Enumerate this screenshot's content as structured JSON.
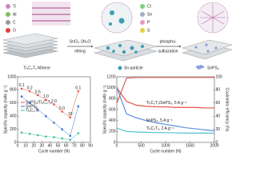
{
  "schematic": {
    "legend_left": [
      "Ti",
      "Al",
      "C",
      "O"
    ],
    "legend_right": [
      "Cl",
      "Sn",
      "P",
      "S"
    ],
    "step1_top": "SnCl₂·2H₂O",
    "step1_bottom": "ething",
    "step2_top": "phospho-",
    "step2_bottom": "sulfuization",
    "label_mxene": "Ti₃C₂Tₓ MXene",
    "label_sn": "Sn particle",
    "label_snps3": "SnPS₃"
  },
  "chart_data": [
    {
      "type": "line",
      "x_label": "Cycle number (N)",
      "y_label": "Specific capacity (mAh g⁻¹)",
      "x": [
        5,
        15,
        25,
        35,
        45,
        55,
        65,
        75
      ],
      "rate_labels": [
        "0.1",
        "0.2",
        "0.5",
        "1.0",
        "2.0",
        "5.0",
        "10",
        "0.1"
      ],
      "series": [
        {
          "name": "SnPS₃/Ti₃C₂Tₓ",
          "color": "#e8524a",
          "values": [
            820,
            780,
            720,
            650,
            580,
            470,
            380,
            780
          ]
        },
        {
          "name": "SnPS₃",
          "color": "#3b6fd8",
          "values": [
            700,
            600,
            500,
            400,
            300,
            200,
            100,
            550
          ]
        },
        {
          "name": "Ti₃C₂Tₓ",
          "color": "#3fbfa0",
          "values": [
            150,
            130,
            110,
            90,
            80,
            60,
            40,
            140
          ]
        }
      ],
      "xlim": [
        0,
        90
      ],
      "xticks": [
        0,
        10,
        20,
        30,
        40,
        50,
        60,
        70,
        80,
        90
      ],
      "ylim": [
        0,
        1000
      ],
      "yticks": [
        0,
        200,
        400,
        600,
        800,
        1000
      ]
    },
    {
      "type": "line",
      "x_label": "Cycle number (N)",
      "y_label": "Specific capacity (mAh g⁻¹)",
      "y2_label": "Coulombic efficiency (%)",
      "x": [
        0,
        200,
        400,
        600,
        800,
        1000,
        1200,
        1400,
        1600,
        1800,
        2000
      ],
      "series": [
        {
          "name": "Ti₃C₂Tₓ/SnPS₃, 5 A g⁻¹",
          "color": "#e8524a",
          "values": [
            1000,
            750,
            680,
            660,
            650,
            650,
            640,
            640,
            640,
            630,
            630
          ]
        },
        {
          "name": "SnPS₃, 5 A g⁻¹",
          "color": "#5a8fe0",
          "values": [
            1000,
            520,
            450,
            400,
            360,
            330,
            300,
            270,
            250,
            230,
            210
          ]
        },
        {
          "name": "Ti₃C₂Tₓ, 2 A g⁻¹",
          "color": "#4fc0d0",
          "values": [
            260,
            200,
            190,
            185,
            180,
            178,
            175,
            172,
            170,
            170,
            168
          ]
        },
        {
          "color": "#d0605a",
          "axis": "y2",
          "values": [
            60,
            98,
            99,
            99,
            99,
            99,
            99,
            99,
            99,
            99,
            99
          ]
        }
      ],
      "xlim": [
        0,
        2000
      ],
      "xticks": [
        0,
        500,
        1000,
        1500,
        2000
      ],
      "ylim": [
        0,
        1200
      ],
      "yticks": [
        0,
        200,
        400,
        600,
        800,
        1000,
        1200
      ],
      "y2lim": [
        0,
        100
      ],
      "y2ticks": [
        0,
        20,
        40,
        60,
        80,
        100
      ]
    }
  ]
}
